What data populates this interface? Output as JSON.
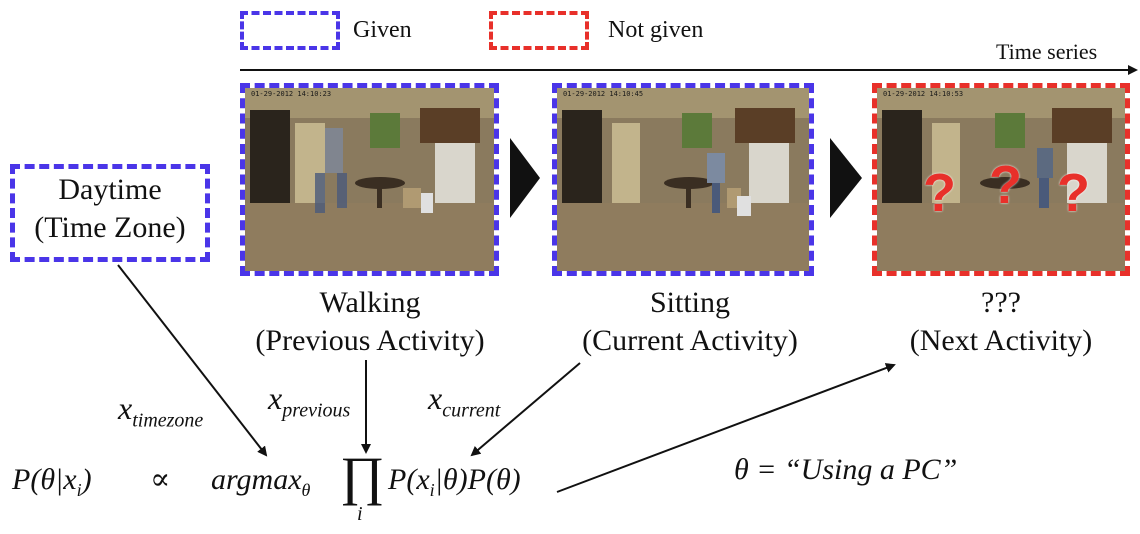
{
  "legend": {
    "given_label": "Given",
    "not_given_label": "Not given",
    "given_color": "#4a35e8",
    "not_given_color": "#e8302a"
  },
  "timeline_label": "Time series",
  "context_box": {
    "line1": "Daytime",
    "line2": "(Time Zone)"
  },
  "frames": [
    {
      "status": "given",
      "timestamp": "01-29-2012 14:10:23",
      "activity": "Walking",
      "role": "(Previous Activity)"
    },
    {
      "status": "given",
      "timestamp": "01-29-2012 14:10:45",
      "activity": "Sitting",
      "role": "(Current Activity)"
    },
    {
      "status": "not_given",
      "timestamp": "01-29-2012 14:10:53",
      "activity": "???",
      "role": "(Next Activity)",
      "overlay_mark": "?"
    }
  ],
  "variables": {
    "timezone": {
      "base": "x",
      "sub": "timezone"
    },
    "previous": {
      "base": "x",
      "sub": "previous"
    },
    "current": {
      "base": "x",
      "sub": "current"
    }
  },
  "formula": {
    "lhs": "P(θ|x",
    "lhs_sub": "i",
    "lhs_close": ")",
    "prop": "∝",
    "argmax": "argmax",
    "argmax_sub": "θ",
    "product": "∏",
    "product_index": "i",
    "rhs": "P(x",
    "rhs_sub": "i",
    "rhs_tail": "|θ)P(θ)"
  },
  "result": "θ = “Using a PC”"
}
